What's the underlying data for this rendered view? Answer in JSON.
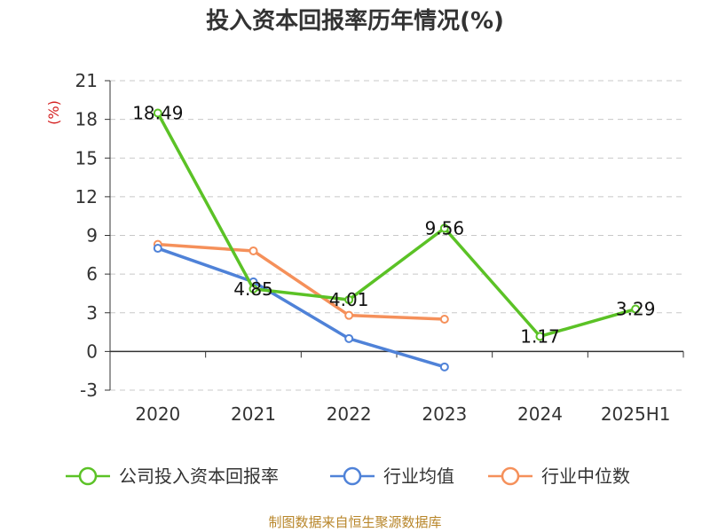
{
  "chart_data": {
    "type": "line",
    "title": "投入资本回报率历年情况(%)",
    "unit_label": "(%)",
    "categories": [
      "2020",
      "2021",
      "2022",
      "2023",
      "2024",
      "2025H1"
    ],
    "y_ticks": [
      "21",
      "18",
      "15",
      "12",
      "9",
      "6",
      "3",
      "0",
      "-3"
    ],
    "ylim": [
      -3,
      21
    ],
    "grid": true,
    "legend_position": "bottom",
    "series": [
      {
        "name": "公司投入资本回报率",
        "color": "#5bc226",
        "values": [
          18.49,
          4.85,
          4.01,
          9.56,
          1.17,
          3.29
        ],
        "labels": [
          "18.49",
          "4.85",
          "4.01",
          "9.56",
          "1.17",
          "3.29"
        ]
      },
      {
        "name": "行业均值",
        "color": "#4f82d8",
        "values": [
          8.0,
          5.4,
          1.0,
          -1.2,
          null,
          null
        ]
      },
      {
        "name": "行业中位数",
        "color": "#f5905a",
        "values": [
          8.3,
          7.8,
          2.8,
          2.5,
          null,
          null
        ]
      }
    ],
    "source": "制图数据来自恒生聚源数据库"
  }
}
